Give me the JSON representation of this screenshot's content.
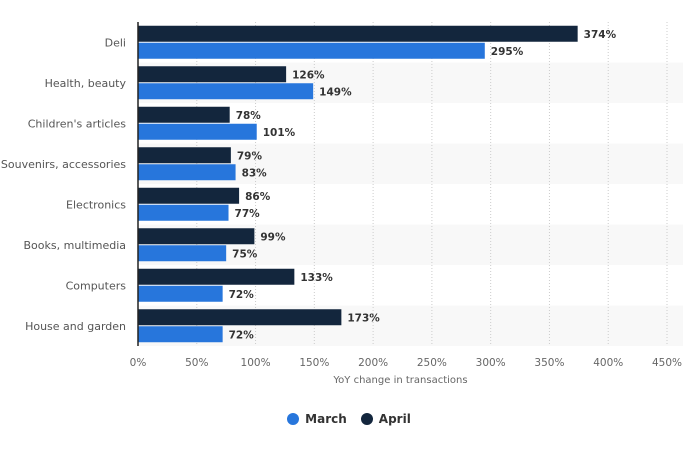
{
  "chart_data": {
    "type": "bar",
    "orientation": "horizontal",
    "title": "",
    "xlabel": "YoY change in transactions",
    "ylabel": "",
    "xlim": [
      0,
      450
    ],
    "x_ticks": [
      "0%",
      "50%",
      "100%",
      "150%",
      "200%",
      "250%",
      "300%",
      "350%",
      "400%",
      "450%"
    ],
    "x_tick_values": [
      0,
      50,
      100,
      150,
      200,
      250,
      300,
      350,
      400,
      450
    ],
    "grid": true,
    "legend_position": "bottom-center",
    "value_suffix": "%",
    "categories": [
      "Deli",
      "Health, beauty",
      "Children's articles",
      "Souvenirs, accessories",
      "Electronics",
      "Books, multimedia",
      "Computers",
      "House and garden"
    ],
    "series": [
      {
        "name": "April",
        "color": "#13263d",
        "values": [
          374,
          126,
          78,
          79,
          86,
          99,
          133,
          173
        ]
      },
      {
        "name": "March",
        "color": "#2776dc",
        "values": [
          295,
          149,
          101,
          83,
          77,
          75,
          72,
          72
        ]
      }
    ]
  },
  "legend": {
    "items": [
      {
        "label": "March",
        "color": "#2776dc"
      },
      {
        "label": "April",
        "color": "#13263d"
      }
    ]
  }
}
